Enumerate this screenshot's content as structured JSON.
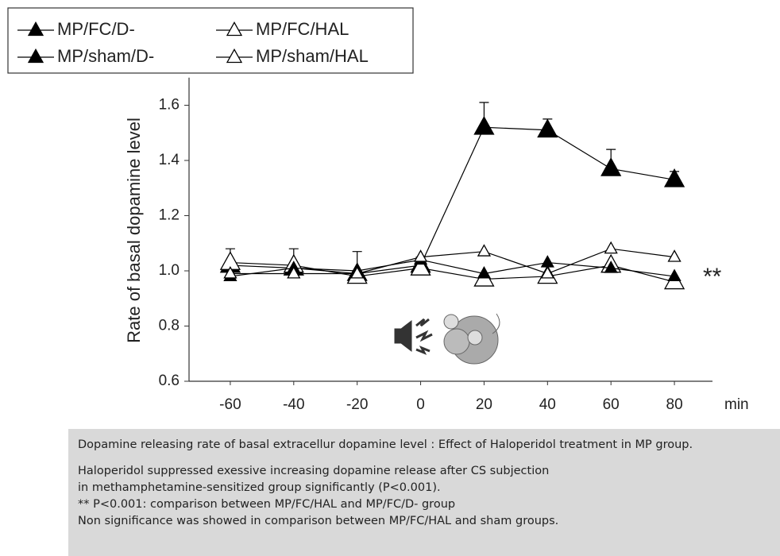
{
  "chart_data": {
    "type": "line",
    "y_label": "Rate of basal dopamine level",
    "x_label": "min",
    "x": [
      -60,
      -40,
      -20,
      0,
      20,
      40,
      60,
      80
    ],
    "xlim": [
      -73,
      92
    ],
    "xticks": [
      -60,
      -40,
      -20,
      0,
      20,
      40,
      60,
      80
    ],
    "ylim": [
      0.6,
      1.7
    ],
    "yticks": [
      0.6,
      0.8,
      {
        "value": 1.0,
        "label": "1.0"
      },
      1.2,
      1.4,
      1.6
    ],
    "annotation": "**",
    "series": [
      {
        "name": "MP/FC/D-",
        "color": "#000",
        "marker": "filled-large",
        "values": [
          1.02,
          1.01,
          0.99,
          1.02,
          1.52,
          1.51,
          1.37,
          1.33
        ],
        "errors": [
          0.06,
          0.07,
          0.08,
          0.03,
          0.09,
          0.04,
          0.07,
          0.03
        ]
      },
      {
        "name": "MP/FC/HAL",
        "color": "#000",
        "marker": "open-large",
        "values": [
          1.03,
          1.02,
          0.98,
          1.01,
          0.97,
          0.98,
          1.02,
          0.96
        ]
      },
      {
        "name": "MP/sham/D-",
        "color": "#000",
        "marker": "filled-small",
        "values": [
          0.98,
          1.01,
          1.0,
          1.04,
          0.99,
          1.03,
          1.01,
          0.98
        ]
      },
      {
        "name": "MP/sham/HAL",
        "color": "#000",
        "marker": "open-small",
        "values": [
          0.99,
          0.99,
          0.99,
          1.05,
          1.07,
          0.99,
          1.08,
          1.05
        ]
      }
    ]
  },
  "caption": {
    "heading": "Dopamine releasing rate of basal extracellur dopamine level : Effect of Haloperidol treatment in MP group.",
    "lines": [
      "Haloperidol suppressed exessive increasing dopamine release after CS subjection",
      "in methamphetamine-sensitized group significantly (P<0.001).",
      "** P<0.001: comparison between MP/FC/HAL and  MP/FC/D- group",
      "Non significance was showed in comparison between MP/FC/HAL and sham groups."
    ]
  }
}
